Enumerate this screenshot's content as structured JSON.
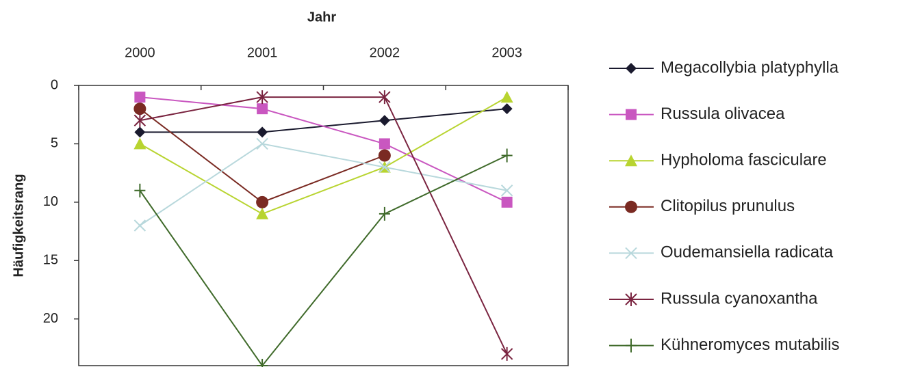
{
  "chart_data": {
    "type": "line",
    "x_label": "Jahr",
    "y_label": "Häufigkeitsrang",
    "categories": [
      "2000",
      "2001",
      "2002",
      "2003"
    ],
    "ylim": [
      0,
      24
    ],
    "yticks": [
      0,
      5,
      10,
      15,
      20
    ],
    "y_inverted": true,
    "grid": false,
    "series": [
      {
        "name": "Megacollybia platyphylla",
        "color": "#1a1a2e",
        "marker": "diamond",
        "values": [
          4,
          4,
          3,
          2
        ]
      },
      {
        "name": "Russula olivacea",
        "color": "#c957c0",
        "marker": "square",
        "values": [
          1,
          2,
          5,
          10
        ]
      },
      {
        "name": "Hypholoma fasciculare",
        "color": "#b8d430",
        "marker": "triangle",
        "values": [
          5,
          11,
          7,
          1
        ]
      },
      {
        "name": "Clitopilus prunulus",
        "color": "#7a2a22",
        "marker": "circle",
        "values": [
          2,
          10,
          6,
          null
        ]
      },
      {
        "name": "Oudemansiella radicata",
        "color": "#b8d8dc",
        "marker": "x",
        "values": [
          12,
          5,
          7,
          9
        ]
      },
      {
        "name": "Russula cyanoxantha",
        "color": "#7a2440",
        "marker": "asterisk",
        "values": [
          3,
          1,
          1,
          23
        ]
      },
      {
        "name": "Kühneromyces mutabilis",
        "color": "#3f6a2a",
        "marker": "plus",
        "values": [
          9,
          24,
          11,
          6
        ]
      }
    ]
  }
}
